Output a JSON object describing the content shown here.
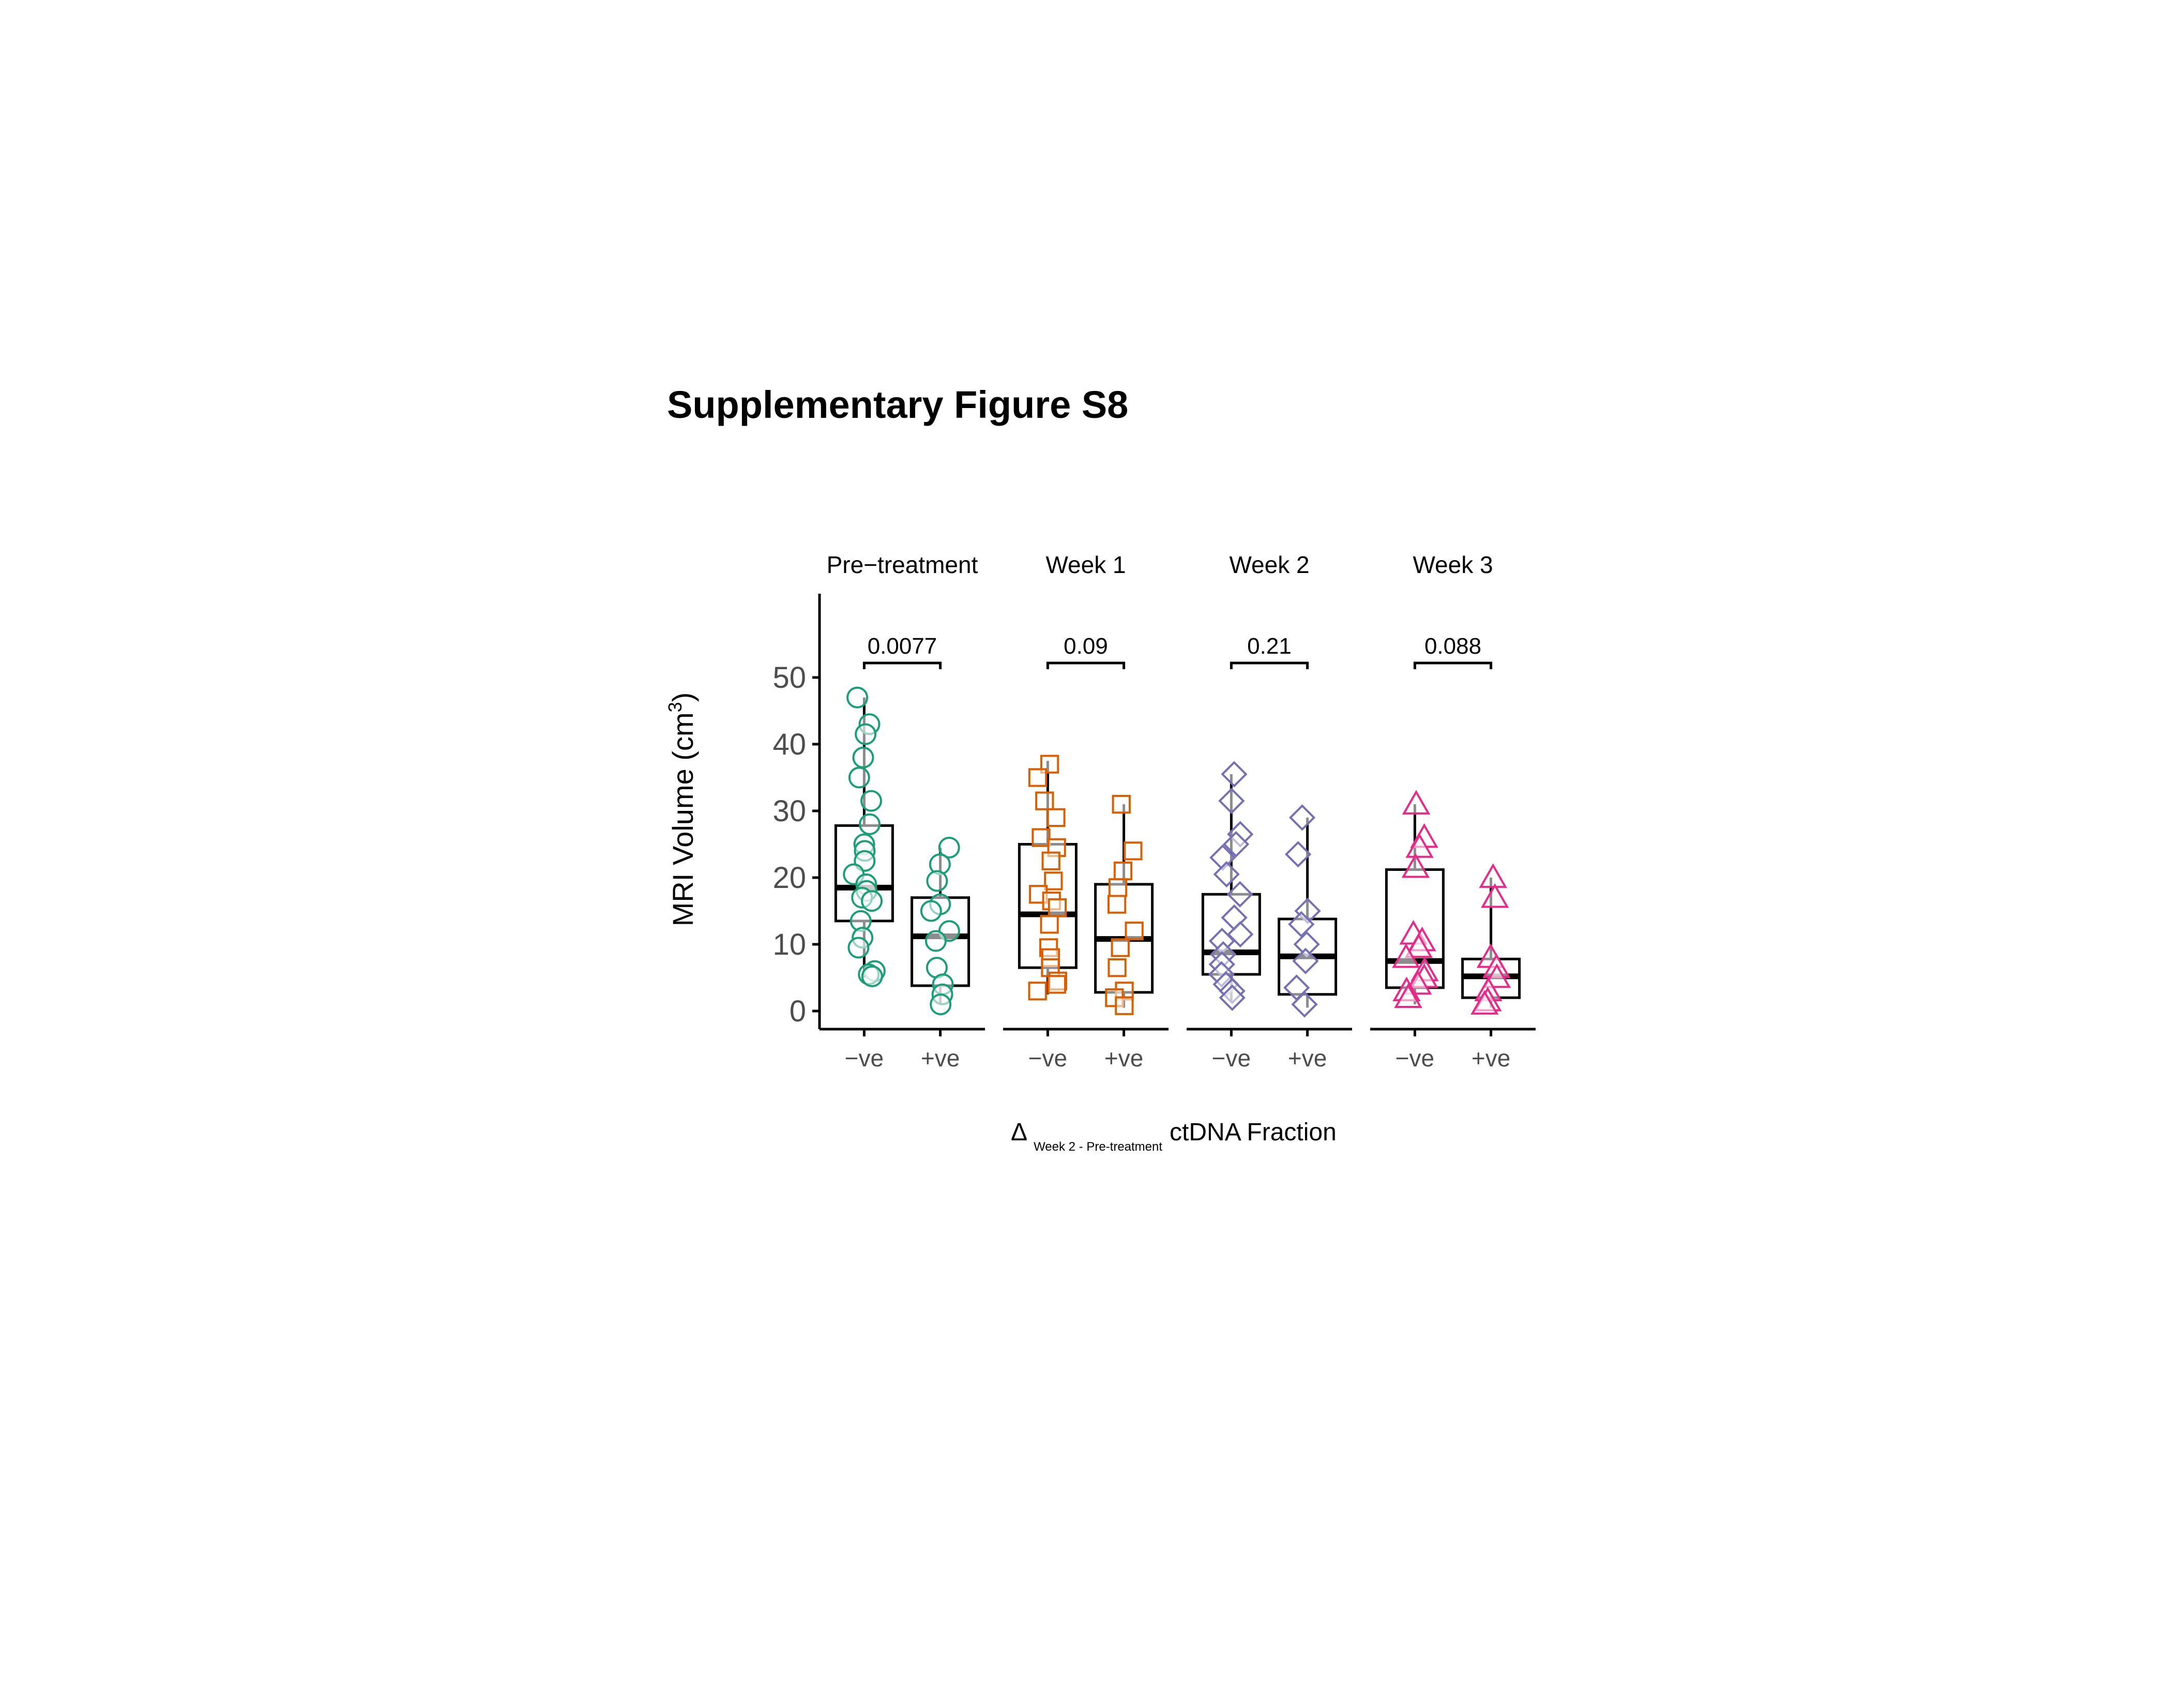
{
  "figure_title": "Supplementary Figure S8",
  "chart_data": {
    "type": "box",
    "ylabel": "MRI Volume  (cm",
    "ylabel_superscript": "3",
    "ylabel_suffix": ")",
    "xlabel_prefix": "Δ",
    "xlabel_subscript": "Week 2 - Pre-treatment",
    "xlabel_main": "ctDNA Fraction",
    "ylim": [
      -3,
      66
    ],
    "yticks": [
      0,
      10,
      20,
      30,
      40,
      50
    ],
    "ytick_labels": [
      "0",
      "10",
      "20",
      "30",
      "40",
      "50"
    ],
    "categories": [
      "−ve",
      "+ve"
    ],
    "facets": [
      {
        "name": "Pre−treatment",
        "color": "#1b9e77",
        "marker": "circle",
        "p_value": "0.0077",
        "groups": [
          {
            "category": "−ve",
            "q1": 13.5,
            "median": 18.5,
            "q3": 27.8,
            "whisker_low": 5.0,
            "whisker_high": 47.0,
            "points": [
              47.0,
              43.0,
              41.5,
              38.0,
              35.0,
              31.5,
              28.0,
              25.0,
              24.0,
              22.5,
              20.5,
              19.0,
              18.0,
              17.0,
              16.5,
              13.5,
              11.0,
              9.5,
              6.0,
              5.5,
              5.2
            ]
          },
          {
            "category": "+ve",
            "q1": 3.8,
            "median": 11.2,
            "q3": 17.0,
            "whisker_low": 1.0,
            "whisker_high": 24.5,
            "points": [
              24.5,
              22.0,
              19.5,
              16.0,
              15.0,
              12.0,
              10.5,
              6.5,
              4.0,
              2.5,
              1.0
            ]
          }
        ]
      },
      {
        "name": "Week 1",
        "color": "#d95f02",
        "marker": "square",
        "p_value": "0.09",
        "groups": [
          {
            "category": "−ve",
            "q1": 6.5,
            "median": 14.5,
            "q3": 25.0,
            "whisker_low": 2.5,
            "whisker_high": 37.5,
            "points": [
              37.0,
              35.0,
              31.5,
              29.0,
              26.0,
              24.5,
              22.5,
              19.5,
              17.5,
              16.5,
              15.5,
              13.0,
              9.5,
              8.0,
              6.5,
              4.5,
              4.0,
              3.0
            ]
          },
          {
            "category": "+ve",
            "q1": 2.8,
            "median": 10.8,
            "q3": 19.0,
            "whisker_low": 0.5,
            "whisker_high": 31.0,
            "points": [
              31.0,
              24.0,
              21.0,
              18.5,
              16.0,
              12.0,
              9.5,
              6.5,
              3.0,
              2.0,
              0.8
            ]
          }
        ]
      },
      {
        "name": "Week 2",
        "color": "#7570b3",
        "marker": "diamond",
        "p_value": "0.21",
        "groups": [
          {
            "category": "−ve",
            "q1": 5.5,
            "median": 8.8,
            "q3": 17.5,
            "whisker_low": 1.5,
            "whisker_high": 35.5,
            "points": [
              35.5,
              31.5,
              26.5,
              25.0,
              23.0,
              20.5,
              17.5,
              14.0,
              11.5,
              10.5,
              8.5,
              7.0,
              5.5,
              4.0,
              3.0,
              2.0
            ]
          },
          {
            "category": "+ve",
            "q1": 2.5,
            "median": 8.2,
            "q3": 13.8,
            "whisker_low": 0.5,
            "whisker_high": 29.0,
            "points": [
              29.0,
              23.5,
              15.0,
              13.0,
              10.0,
              7.5,
              3.5,
              1.0
            ]
          }
        ]
      },
      {
        "name": "Week 3",
        "color": "#e7298a",
        "marker": "triangle",
        "p_value": "0.088",
        "groups": [
          {
            "category": "−ve",
            "q1": 3.5,
            "median": 7.5,
            "q3": 21.2,
            "whisker_low": 1.0,
            "whisker_high": 31.0,
            "points": [
              31.0,
              26.0,
              24.5,
              21.5,
              11.5,
              10.5,
              9.5,
              8.0,
              6.0,
              5.0,
              4.0,
              3.0,
              2.0
            ]
          },
          {
            "category": "+ve",
            "q1": 2.0,
            "median": 5.2,
            "q3": 7.8,
            "whisker_low": 0.5,
            "whisker_high": 20.0,
            "points": [
              20.0,
              17.0,
              8.0,
              6.5,
              5.0,
              3.0,
              1.5,
              1.0
            ]
          }
        ]
      }
    ]
  }
}
